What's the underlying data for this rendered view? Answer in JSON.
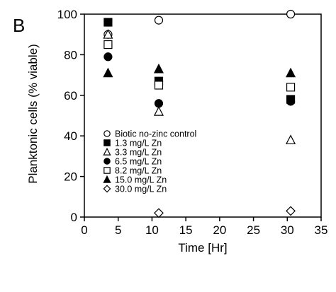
{
  "panel_label": "B",
  "chart_data": {
    "type": "scatter",
    "xlabel": "Time [Hr]",
    "ylabel": "Planktonic cells (% viable)",
    "xlim": [
      0,
      35
    ],
    "ylim": [
      0,
      100
    ],
    "xticks": [
      0,
      5,
      10,
      15,
      20,
      25,
      30,
      35
    ],
    "yticks": [
      0,
      20,
      40,
      60,
      80,
      100
    ],
    "grid": false,
    "legend_position": "lower-left inside plot",
    "series": [
      {
        "name": "Biotic no-zinc control",
        "marker": "circle-open",
        "x": [
          3.5,
          11,
          30.5
        ],
        "y": [
          90,
          97,
          100
        ]
      },
      {
        "name": "1.3 mg/L Zn",
        "marker": "square-filled",
        "x": [
          3.5,
          11,
          30.5
        ],
        "y": [
          96,
          67,
          58
        ]
      },
      {
        "name": "3.3 mg/L Zn",
        "marker": "triangle-open",
        "x": [
          3.5,
          11,
          30.5
        ],
        "y": [
          90,
          52,
          38
        ]
      },
      {
        "name": "6.5 mg/L Zn",
        "marker": "circle-filled",
        "x": [
          3.5,
          11,
          30.5
        ],
        "y": [
          79,
          56,
          57
        ]
      },
      {
        "name": "8.2 mg/L Zn",
        "marker": "square-open",
        "x": [
          3.5,
          11,
          30.5
        ],
        "y": [
          85,
          65,
          64
        ]
      },
      {
        "name": "15.0 mg/L Zn",
        "marker": "triangle-filled",
        "x": [
          3.5,
          11,
          30.5
        ],
        "y": [
          71,
          73,
          71
        ]
      },
      {
        "name": "30.0 mg/L Zn",
        "marker": "diamond-open",
        "x": [
          11,
          30.5
        ],
        "y": [
          2,
          3
        ]
      }
    ]
  }
}
